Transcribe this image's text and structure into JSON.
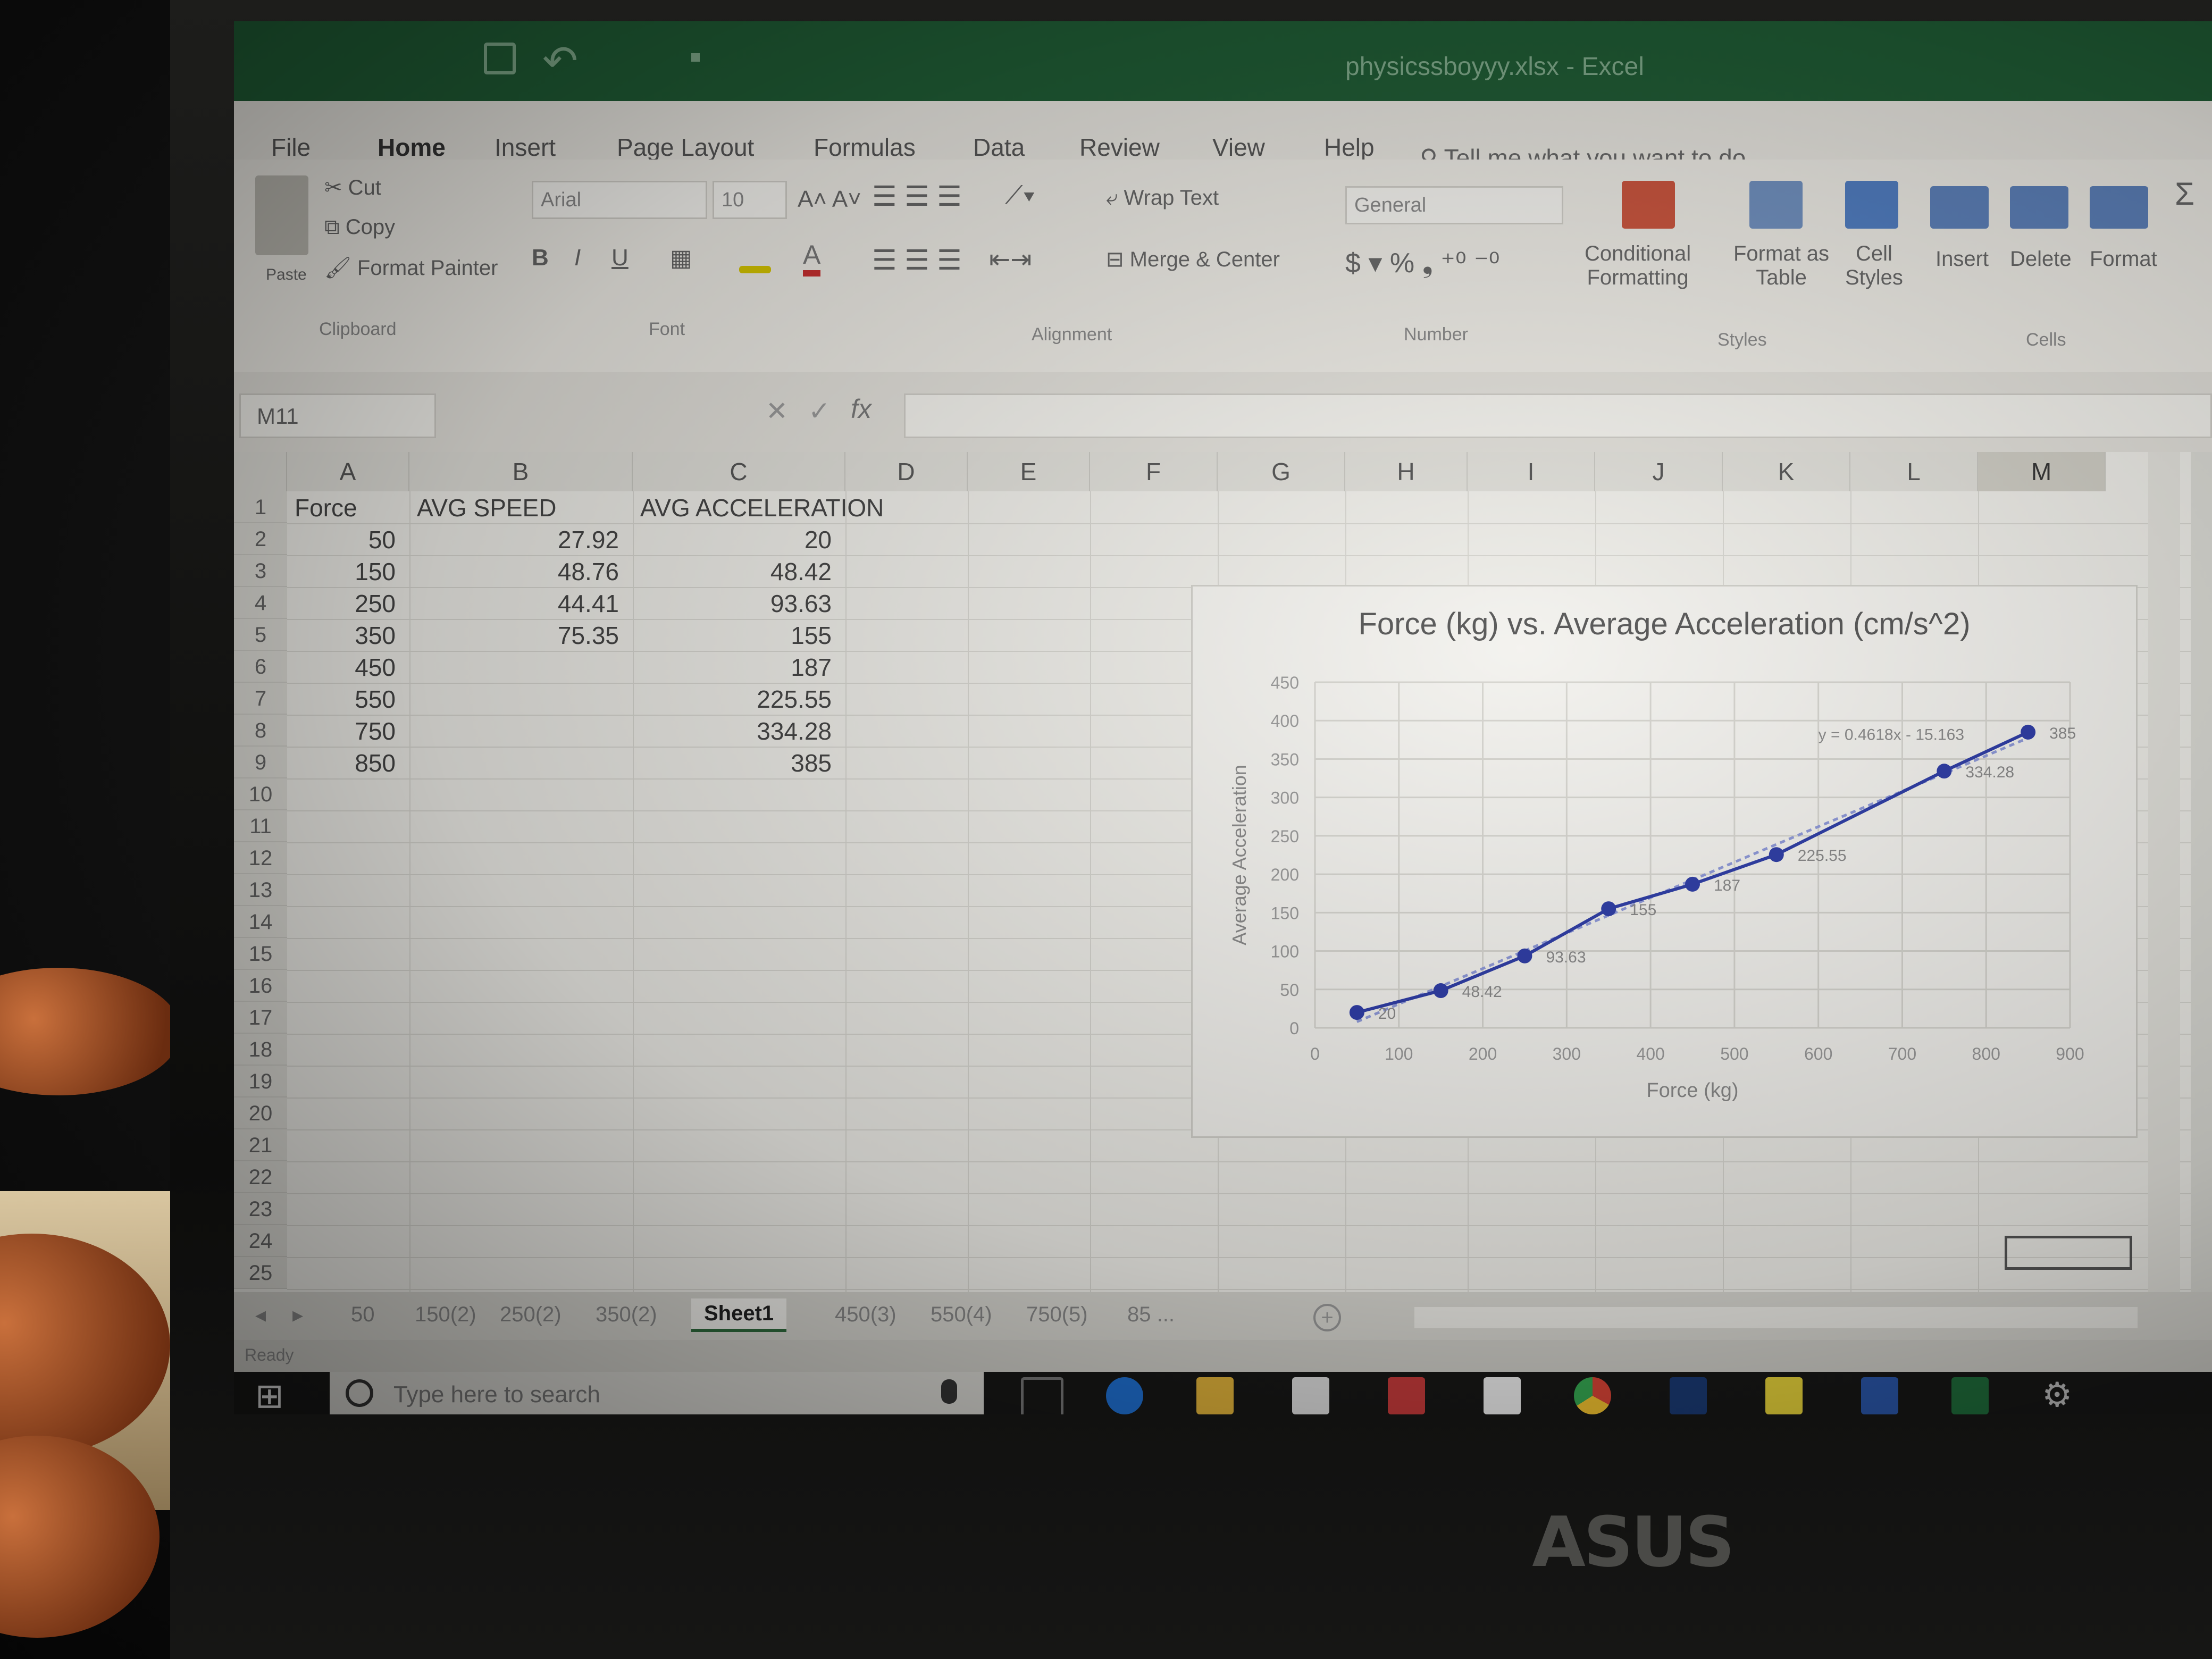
{
  "window": {
    "title": "physicssboyyy.xlsx  -  Excel"
  },
  "ribbon_tabs": [
    "File",
    "Home",
    "Insert",
    "Page Layout",
    "Formulas",
    "Data",
    "Review",
    "View",
    "Help"
  ],
  "tell_me": "Tell me what you want to do",
  "clipboard": {
    "cut": "Cut",
    "copy": "Copy",
    "format_painter": "Format Painter",
    "paste": "Paste",
    "group": "Clipboard"
  },
  "font": {
    "name": "Arial",
    "size": "10",
    "group": "Font"
  },
  "alignment": {
    "wrap_text": "Wrap Text",
    "merge_center": "Merge & Center",
    "group": "Alignment"
  },
  "number": {
    "format": "General",
    "group": "Number"
  },
  "styles": {
    "conditional": [
      "Conditional",
      "Formatting"
    ],
    "format_as_table": [
      "Format as",
      "Table"
    ],
    "cell_styles": [
      "Cell",
      "Styles"
    ],
    "group": "Styles"
  },
  "cells": {
    "insert": "Insert",
    "delete": "Delete",
    "format": "Format",
    "group": "Cells"
  },
  "formula_bar": {
    "name_box": "M11",
    "fx": "fx",
    "value": ""
  },
  "grid": {
    "columns": [
      "A",
      "B",
      "C",
      "D",
      "E",
      "F",
      "G",
      "H",
      "I",
      "J",
      "K",
      "L",
      "M"
    ],
    "rows": [
      "1",
      "2",
      "3",
      "4",
      "5",
      "6",
      "7",
      "8",
      "9",
      "10",
      "11",
      "12",
      "13",
      "14",
      "15",
      "16",
      "17",
      "18",
      "19",
      "20",
      "21",
      "22",
      "23",
      "24",
      "25"
    ],
    "headers": [
      "Force",
      "AVG SPEED",
      "AVG ACCELERATION"
    ],
    "force": [
      "50",
      "150",
      "250",
      "350",
      "450",
      "550",
      "750",
      "850"
    ],
    "avg_speed": [
      "27.92",
      "48.76",
      "44.41",
      "75.35"
    ],
    "avg_accel": [
      "20",
      "48.42",
      "93.63",
      "155",
      "187",
      "225.55",
      "334.28",
      "385"
    ]
  },
  "chart_data": {
    "type": "scatter",
    "title": "Force (kg) vs. Average Acceleration (cm/s^2)",
    "xlabel": "Force (kg)",
    "ylabel": "Average Acceleration",
    "xlim": [
      0,
      900
    ],
    "ylim": [
      0,
      450
    ],
    "xticks": [
      "0",
      "100",
      "200",
      "300",
      "400",
      "500",
      "600",
      "700",
      "800",
      "900"
    ],
    "yticks": [
      "0",
      "50",
      "100",
      "150",
      "200",
      "250",
      "300",
      "350",
      "400",
      "450"
    ],
    "grid": true,
    "series": [
      {
        "x": [
          50,
          150,
          250,
          350,
          450,
          550,
          750,
          850
        ],
        "y": [
          20,
          48.42,
          93.63,
          155,
          187,
          225.55,
          334.28,
          385
        ],
        "labels": [
          "20",
          "48.42",
          "93.63",
          "155",
          "187",
          "225.55",
          "334.28",
          "385"
        ]
      }
    ],
    "trendline": {
      "slope": 0.4618,
      "intercept": -15.163,
      "equation": "y = 0.4618x - 15.163"
    },
    "colors": {
      "series": "#2b3aa5",
      "trend": "#8d98d8"
    }
  },
  "sheet_tabs": [
    "50",
    "150(2)",
    "250(2)",
    "350(2)",
    "Sheet1",
    "450(3)",
    "550(4)",
    "750(5)",
    "85 ..."
  ],
  "active_sheet": "Sheet1",
  "status": "Ready",
  "taskbar": {
    "search_placeholder": "Type here to search"
  },
  "laptop_brand": "ASUS"
}
